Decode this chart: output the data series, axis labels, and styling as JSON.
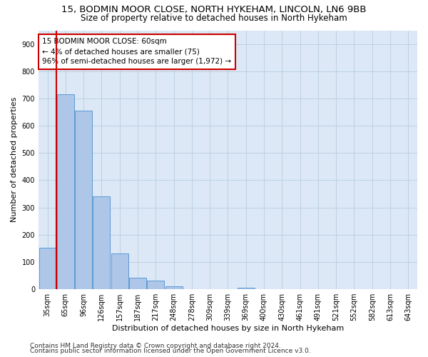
{
  "title1": "15, BODMIN MOOR CLOSE, NORTH HYKEHAM, LINCOLN, LN6 9BB",
  "title2": "Size of property relative to detached houses in North Hykeham",
  "xlabel": "Distribution of detached houses by size in North Hykeham",
  "ylabel": "Number of detached properties",
  "categories": [
    "35sqm",
    "65sqm",
    "96sqm",
    "126sqm",
    "157sqm",
    "187sqm",
    "217sqm",
    "248sqm",
    "278sqm",
    "309sqm",
    "339sqm",
    "369sqm",
    "400sqm",
    "430sqm",
    "461sqm",
    "491sqm",
    "521sqm",
    "552sqm",
    "582sqm",
    "613sqm",
    "643sqm"
  ],
  "bar_values": [
    152,
    715,
    655,
    340,
    130,
    43,
    32,
    12,
    0,
    0,
    0,
    5,
    0,
    0,
    0,
    0,
    0,
    0,
    0,
    0,
    0
  ],
  "bar_color": "#aec6e8",
  "bar_edge_color": "#5b9bd5",
  "vline_color": "#cc0000",
  "annotation_line1": "15 BODMIN MOOR CLOSE: 60sqm",
  "annotation_line2": "← 4% of detached houses are smaller (75)",
  "annotation_line3": "96% of semi-detached houses are larger (1,972) →",
  "annotation_box_color": "#ffffff",
  "annotation_box_edge_color": "#cc0000",
  "ylim": [
    0,
    950
  ],
  "yticks": [
    0,
    100,
    200,
    300,
    400,
    500,
    600,
    700,
    800,
    900
  ],
  "footer1": "Contains HM Land Registry data © Crown copyright and database right 2024.",
  "footer2": "Contains public sector information licensed under the Open Government Licence v3.0.",
  "bg_color": "#ffffff",
  "plot_bg_color": "#dce8f5",
  "grid_color": "#b8cde0",
  "title1_fontsize": 9.5,
  "title2_fontsize": 8.5,
  "tick_fontsize": 7,
  "xlabel_fontsize": 8,
  "ylabel_fontsize": 8,
  "annot_fontsize": 7.5,
  "footer_fontsize": 6.5
}
